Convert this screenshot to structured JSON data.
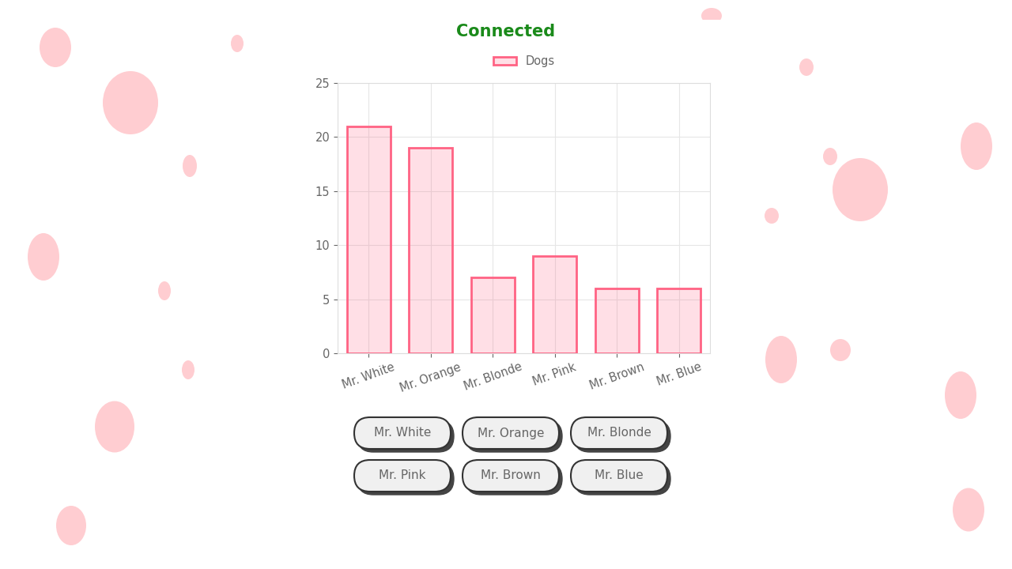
{
  "chart_data": {
    "type": "bar",
    "title": "Connected",
    "categories": [
      "Mr. White",
      "Mr. Orange",
      "Mr. Blonde",
      "Mr. Pink",
      "Mr. Brown",
      "Mr. Blue"
    ],
    "series": [
      {
        "name": "Dogs",
        "color": "#ff6384",
        "values": [
          21,
          19,
          7,
          9,
          6,
          6
        ]
      }
    ],
    "ylim": [
      0,
      25
    ],
    "yticks": [
      0,
      5,
      10,
      15,
      20,
      25
    ],
    "grid": true,
    "legend": "top"
  }
}
